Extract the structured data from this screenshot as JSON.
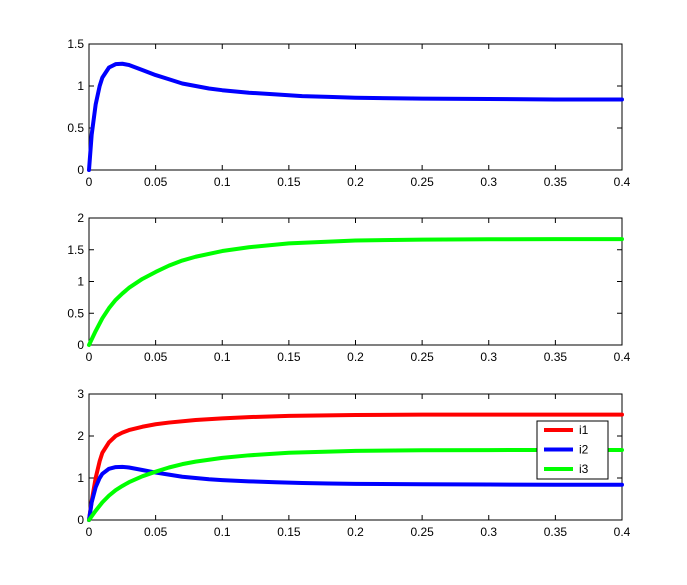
{
  "chart_data": [
    {
      "type": "line",
      "title": "",
      "xlabel": "",
      "ylabel": "",
      "xlim": [
        0,
        0.4
      ],
      "ylim": [
        0,
        1.5
      ],
      "xticks": [
        0,
        0.05,
        0.1,
        0.15,
        0.2,
        0.25,
        0.3,
        0.35,
        0.4
      ],
      "xtick_labels": [
        "0",
        "0.05",
        "0.1",
        "0.15",
        "0.2",
        "0.25",
        "0.3",
        "0.35",
        "0.4"
      ],
      "yticks": [
        0,
        0.5,
        1,
        1.5
      ],
      "ytick_labels": [
        "0",
        "0.5",
        "1",
        "1.5"
      ],
      "grid": false,
      "series": [
        {
          "color": "#0000ff",
          "x": [
            0,
            0.002,
            0.005,
            0.008,
            0.01,
            0.015,
            0.02,
            0.025,
            0.03,
            0.035,
            0.04,
            0.05,
            0.06,
            0.07,
            0.08,
            0.09,
            0.1,
            0.12,
            0.14,
            0.16,
            0.18,
            0.2,
            0.25,
            0.3,
            0.35,
            0.4
          ],
          "y": [
            0,
            0.42,
            0.78,
            1.0,
            1.1,
            1.22,
            1.26,
            1.265,
            1.25,
            1.22,
            1.19,
            1.13,
            1.08,
            1.03,
            1.0,
            0.97,
            0.95,
            0.92,
            0.9,
            0.88,
            0.87,
            0.86,
            0.85,
            0.845,
            0.84,
            0.84
          ]
        }
      ]
    },
    {
      "type": "line",
      "title": "",
      "xlabel": "",
      "ylabel": "",
      "xlim": [
        0,
        0.4
      ],
      "ylim": [
        0,
        2
      ],
      "xticks": [
        0,
        0.05,
        0.1,
        0.15,
        0.2,
        0.25,
        0.3,
        0.35,
        0.4
      ],
      "xtick_labels": [
        "0",
        "0.05",
        "0.1",
        "0.15",
        "0.2",
        "0.25",
        "0.3",
        "0.35",
        "0.4"
      ],
      "yticks": [
        0,
        0.5,
        1,
        1.5,
        2
      ],
      "ytick_labels": [
        "0",
        "0.5",
        "1",
        "1.5",
        "2"
      ],
      "grid": false,
      "series": [
        {
          "color": "#00ff00",
          "x": [
            0,
            0.005,
            0.01,
            0.015,
            0.02,
            0.025,
            0.03,
            0.04,
            0.05,
            0.06,
            0.07,
            0.08,
            0.1,
            0.12,
            0.15,
            0.2,
            0.25,
            0.3,
            0.35,
            0.4
          ],
          "y": [
            0,
            0.22,
            0.42,
            0.58,
            0.71,
            0.81,
            0.9,
            1.04,
            1.15,
            1.25,
            1.33,
            1.39,
            1.48,
            1.54,
            1.6,
            1.645,
            1.66,
            1.665,
            1.667,
            1.667
          ]
        }
      ]
    },
    {
      "type": "line",
      "title": "",
      "xlabel": "",
      "ylabel": "",
      "xlim": [
        0,
        0.4
      ],
      "ylim": [
        0,
        3
      ],
      "xticks": [
        0,
        0.05,
        0.1,
        0.15,
        0.2,
        0.25,
        0.3,
        0.35,
        0.4
      ],
      "xtick_labels": [
        "0",
        "0.05",
        "0.1",
        "0.15",
        "0.2",
        "0.25",
        "0.3",
        "0.35",
        "0.4"
      ],
      "yticks": [
        0,
        1,
        2,
        3
      ],
      "ytick_labels": [
        "0",
        "1",
        "2",
        "3"
      ],
      "grid": false,
      "legend_placement": "right",
      "series": [
        {
          "name": "i1",
          "color": "#ff0000",
          "x": [
            0,
            0.002,
            0.005,
            0.008,
            0.01,
            0.015,
            0.02,
            0.025,
            0.03,
            0.04,
            0.05,
            0.06,
            0.08,
            0.1,
            0.12,
            0.15,
            0.2,
            0.25,
            0.3,
            0.35,
            0.4
          ],
          "y": [
            0,
            0.45,
            1.0,
            1.4,
            1.6,
            1.85,
            2.0,
            2.08,
            2.14,
            2.22,
            2.28,
            2.32,
            2.38,
            2.42,
            2.45,
            2.48,
            2.5,
            2.51,
            2.51,
            2.51,
            2.51
          ]
        },
        {
          "name": "i2",
          "color": "#0000ff",
          "x": [
            0,
            0.002,
            0.005,
            0.008,
            0.01,
            0.015,
            0.02,
            0.025,
            0.03,
            0.035,
            0.04,
            0.05,
            0.06,
            0.07,
            0.08,
            0.09,
            0.1,
            0.12,
            0.14,
            0.16,
            0.18,
            0.2,
            0.25,
            0.3,
            0.35,
            0.4
          ],
          "y": [
            0,
            0.42,
            0.78,
            1.0,
            1.1,
            1.22,
            1.26,
            1.265,
            1.25,
            1.22,
            1.19,
            1.13,
            1.08,
            1.03,
            1.0,
            0.97,
            0.95,
            0.92,
            0.9,
            0.88,
            0.87,
            0.86,
            0.85,
            0.845,
            0.84,
            0.84
          ]
        },
        {
          "name": "i3",
          "color": "#00ff00",
          "x": [
            0,
            0.005,
            0.01,
            0.015,
            0.02,
            0.025,
            0.03,
            0.04,
            0.05,
            0.06,
            0.07,
            0.08,
            0.1,
            0.12,
            0.15,
            0.2,
            0.25,
            0.3,
            0.35,
            0.4
          ],
          "y": [
            0,
            0.22,
            0.42,
            0.58,
            0.71,
            0.81,
            0.9,
            1.04,
            1.15,
            1.25,
            1.33,
            1.39,
            1.48,
            1.54,
            1.6,
            1.645,
            1.66,
            1.665,
            1.667,
            1.667
          ]
        }
      ]
    }
  ]
}
